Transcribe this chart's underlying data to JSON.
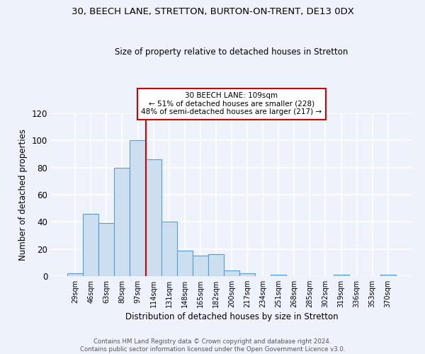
{
  "title1": "30, BEECH LANE, STRETTON, BURTON-ON-TRENT, DE13 0DX",
  "title2": "Size of property relative to detached houses in Stretton",
  "xlabel": "Distribution of detached houses by size in Stretton",
  "ylabel": "Number of detached properties",
  "categories": [
    "29sqm",
    "46sqm",
    "63sqm",
    "80sqm",
    "97sqm",
    "114sqm",
    "131sqm",
    "148sqm",
    "165sqm",
    "182sqm",
    "200sqm",
    "217sqm",
    "234sqm",
    "251sqm",
    "268sqm",
    "285sqm",
    "302sqm",
    "319sqm",
    "336sqm",
    "353sqm",
    "370sqm"
  ],
  "values": [
    2,
    46,
    39,
    80,
    100,
    86,
    40,
    19,
    15,
    16,
    4,
    2,
    0,
    1,
    0,
    0,
    0,
    1,
    0,
    0,
    1
  ],
  "bar_color": "#ccdff0",
  "bar_edge_color": "#5b9bd5",
  "background_color": "#eef2fb",
  "grid_color": "#ffffff",
  "vline_x": 4.5,
  "vline_color": "#cc0000",
  "annotation_line1": "30 BEECH LANE: 109sqm",
  "annotation_line2": "← 51% of detached houses are smaller (228)",
  "annotation_line3": "48% of semi-detached houses are larger (217) →",
  "annotation_box_color": "#ffffff",
  "annotation_box_edge": "#cc0000",
  "ylim": [
    0,
    120
  ],
  "yticks": [
    0,
    20,
    40,
    60,
    80,
    100,
    120
  ],
  "footer1": "Contains HM Land Registry data © Crown copyright and database right 2024.",
  "footer2": "Contains public sector information licensed under the Open Government Licence v3.0."
}
